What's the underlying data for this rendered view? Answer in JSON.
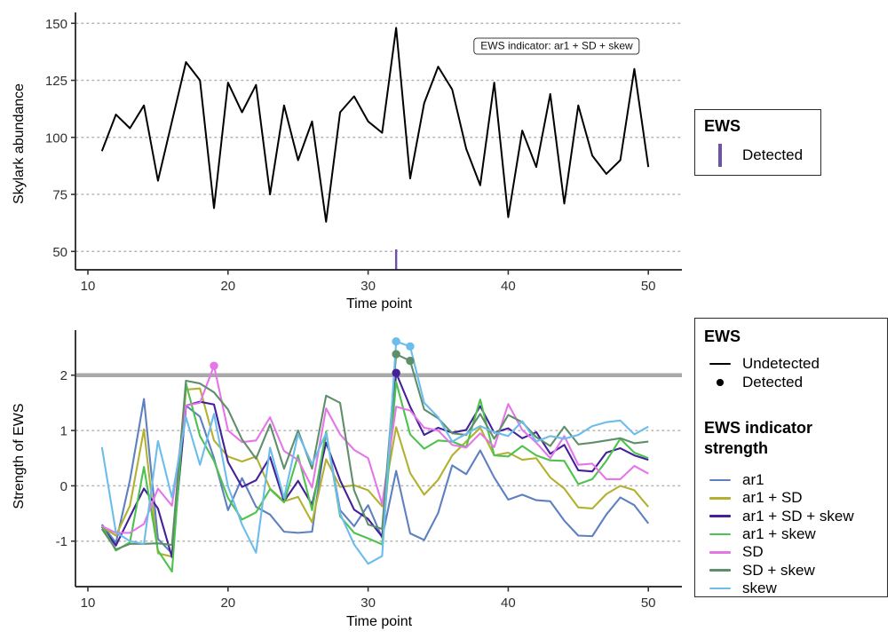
{
  "figure_type": "two-panel EWS time-series figure",
  "legend_top": {
    "title": "EWS",
    "items": [
      {
        "label": "Detected",
        "glyph": "vertical-bar",
        "color": "#6e51a8"
      }
    ]
  },
  "legend_bottom_ews": {
    "title": "EWS",
    "items": [
      {
        "label": "Undetected",
        "glyph": "line",
        "color": "#000000"
      },
      {
        "label": "Detected",
        "glyph": "point",
        "color": "#000000"
      }
    ]
  },
  "legend_bottom_strength": {
    "title": "EWS indicator strength",
    "items": [
      {
        "label": "ar1",
        "color": "#5e80c1"
      },
      {
        "label": "ar1 + SD",
        "color": "#b2b130"
      },
      {
        "label": "ar1 + SD + skew",
        "color": "#44209b"
      },
      {
        "label": "ar1 + skew",
        "color": "#4ec24e"
      },
      {
        "label": "SD",
        "color": "#e476e8"
      },
      {
        "label": "SD + skew",
        "color": "#5f8f6a"
      },
      {
        "label": "skew",
        "color": "#6cbcec"
      }
    ]
  },
  "chart_data": [
    {
      "type": "line",
      "panel": "top",
      "xlabel": "Time point",
      "ylabel": "Skylark abundance",
      "annotation": "EWS indicator: ar1 + SD + skew",
      "line_color": "#000000",
      "grid": "horizontal-dotted",
      "legend_position": "right",
      "xticks": [
        10,
        20,
        30,
        40,
        50
      ],
      "yticks": [
        50,
        75,
        100,
        125,
        150
      ],
      "ylim": [
        42,
        152
      ],
      "xlim": [
        9,
        52
      ],
      "x": [
        11,
        12,
        13,
        14,
        15,
        16,
        17,
        18,
        19,
        20,
        21,
        22,
        23,
        24,
        25,
        26,
        27,
        28,
        29,
        30,
        31,
        32,
        33,
        34,
        35,
        36,
        37,
        38,
        39,
        40,
        41,
        42,
        43,
        44,
        45,
        46,
        47,
        48,
        49,
        50
      ],
      "values": [
        94,
        110,
        104,
        114,
        81,
        107,
        133,
        125,
        69,
        124,
        111,
        123,
        75,
        114,
        90,
        107,
        63,
        111,
        118,
        107,
        102,
        148,
        82,
        115,
        131,
        121,
        95,
        79,
        124,
        65,
        103,
        87,
        119,
        71,
        114,
        92,
        84,
        90,
        130,
        87
      ],
      "detected_rug_x": [
        32
      ],
      "rug_color": "#6e51a8"
    },
    {
      "type": "line",
      "panel": "bottom",
      "xlabel": "Time point",
      "ylabel": "Strength of EWS",
      "grid": "horizontal-dotted",
      "legend_position": "right",
      "threshold": 2,
      "threshold_color": "#a9a9a9",
      "xticks": [
        10,
        20,
        30,
        40,
        50
      ],
      "yticks": [
        -1,
        0,
        1,
        2
      ],
      "ylim": [
        -1.7,
        2.75
      ],
      "xlim": [
        9,
        52
      ],
      "x": [
        11,
        12,
        13,
        14,
        15,
        16,
        17,
        18,
        19,
        20,
        21,
        22,
        23,
        24,
        25,
        26,
        27,
        28,
        29,
        30,
        31,
        32,
        33,
        34,
        35,
        36,
        37,
        38,
        39,
        40,
        41,
        42,
        43,
        44,
        45,
        46,
        47,
        48,
        49,
        50
      ],
      "series": [
        {
          "name": "ar1",
          "color": "#5e80c1",
          "values": [
            -0.7,
            -1.03,
            0.1,
            1.57,
            -0.96,
            -1.22,
            1.45,
            1.25,
            0.5,
            -0.44,
            0.14,
            -0.38,
            -0.52,
            -0.83,
            -0.85,
            -0.83,
            0.96,
            -0.44,
            -0.73,
            -0.35,
            -0.94,
            0.27,
            -0.86,
            -0.98,
            -0.49,
            0.37,
            0.21,
            0.64,
            0.15,
            -0.25,
            -0.16,
            -0.26,
            -0.28,
            -0.63,
            -0.9,
            -0.91,
            -0.52,
            -0.21,
            -0.35,
            -0.68
          ]
        },
        {
          "name": "ar1 + SD",
          "color": "#b2b130",
          "values": [
            -0.74,
            -0.9,
            -0.36,
            1.02,
            -1.22,
            -1.28,
            1.74,
            1.76,
            0.82,
            0.53,
            0.44,
            0.53,
            -0.05,
            -0.28,
            -0.2,
            -0.66,
            0.48,
            -0.02,
            0.01,
            -0.08,
            -0.37,
            1.06,
            0.23,
            -0.16,
            0.11,
            0.55,
            0.8,
            1.05,
            0.55,
            0.6,
            0.47,
            0.5,
            0.15,
            -0.05,
            -0.39,
            -0.41,
            -0.15,
            0.0,
            -0.08,
            -0.38
          ]
        },
        {
          "name": "ar1 + SD + skew",
          "color": "#44209b",
          "values": [
            -0.74,
            -1.08,
            -0.56,
            -0.05,
            -0.41,
            -1.29,
            1.45,
            1.52,
            1.47,
            0.43,
            -0.02,
            0.1,
            0.52,
            -0.28,
            0.09,
            -0.34,
            0.78,
            0.1,
            -0.43,
            -0.6,
            -0.92,
            2.04,
            1.43,
            0.92,
            1.05,
            0.96,
            1.01,
            1.44,
            0.96,
            1.04,
            0.86,
            0.97,
            0.58,
            0.74,
            0.28,
            0.26,
            0.6,
            0.68,
            0.55,
            0.47
          ]
        },
        {
          "name": "ar1 + skew",
          "color": "#4ec24e",
          "values": [
            -0.72,
            -1.17,
            -1.02,
            0.34,
            -1.17,
            -1.55,
            1.85,
            0.9,
            0.45,
            -0.22,
            -0.61,
            -0.48,
            -0.06,
            -0.3,
            0.55,
            -0.44,
            0.98,
            -0.55,
            -0.85,
            -0.95,
            -1.06,
            1.88,
            0.93,
            0.67,
            0.82,
            0.8,
            0.7,
            1.56,
            0.55,
            0.53,
            0.72,
            0.55,
            0.46,
            0.45,
            0.03,
            0.12,
            0.45,
            0.85,
            0.6,
            0.5
          ]
        },
        {
          "name": "SD",
          "color": "#e476e8",
          "values": [
            -0.73,
            -0.85,
            -0.85,
            -0.69,
            -0.05,
            -0.36,
            1.45,
            1.5,
            2.17,
            1.0,
            0.79,
            0.82,
            1.24,
            0.63,
            0.47,
            -0.03,
            1.4,
            0.93,
            0.65,
            0.5,
            -0.33,
            1.43,
            1.36,
            1.05,
            1.0,
            0.74,
            0.69,
            0.95,
            0.7,
            1.48,
            1.01,
            0.78,
            0.5,
            0.9,
            0.38,
            0.4,
            0.12,
            0.12,
            0.36,
            0.22
          ]
        },
        {
          "name": "SD + skew",
          "color": "#5f8f6a",
          "values": [
            -0.78,
            -1.15,
            -1.05,
            -1.05,
            -1.04,
            -1.07,
            1.9,
            1.85,
            1.69,
            1.38,
            0.84,
            0.49,
            1.11,
            0.31,
            1.0,
            0.31,
            1.63,
            1.5,
            -0.08,
            -0.7,
            -0.78,
            2.38,
            2.26,
            1.38,
            1.22,
            0.95,
            0.92,
            1.3,
            0.85,
            1.28,
            1.15,
            0.88,
            0.72,
            1.07,
            0.75,
            0.78,
            0.82,
            0.86,
            0.77,
            0.8
          ]
        },
        {
          "name": "skew",
          "color": "#6cbcec",
          "values": [
            0.7,
            -0.84,
            -1.0,
            -1.05,
            0.81,
            -0.21,
            1.24,
            0.38,
            1.3,
            -0.01,
            -0.7,
            -1.21,
            0.69,
            -0.22,
            0.94,
            0.39,
            0.95,
            -0.5,
            -1.06,
            -1.41,
            -1.27,
            2.61,
            2.52,
            1.5,
            1.24,
            0.8,
            0.94,
            1.08,
            0.97,
            0.9,
            1.17,
            0.8,
            0.9,
            0.85,
            0.92,
            1.08,
            1.15,
            1.18,
            0.93,
            1.07
          ]
        }
      ],
      "detected_points": [
        {
          "series": "SD",
          "x": 19,
          "y": 2.17
        },
        {
          "series": "ar1 + SD + skew",
          "x": 32,
          "y": 2.04
        },
        {
          "series": "SD + skew",
          "x": 32,
          "y": 2.38
        },
        {
          "series": "SD + skew",
          "x": 33,
          "y": 2.26
        },
        {
          "series": "skew",
          "x": 32,
          "y": 2.61
        },
        {
          "series": "skew",
          "x": 33,
          "y": 2.52
        }
      ]
    }
  ]
}
